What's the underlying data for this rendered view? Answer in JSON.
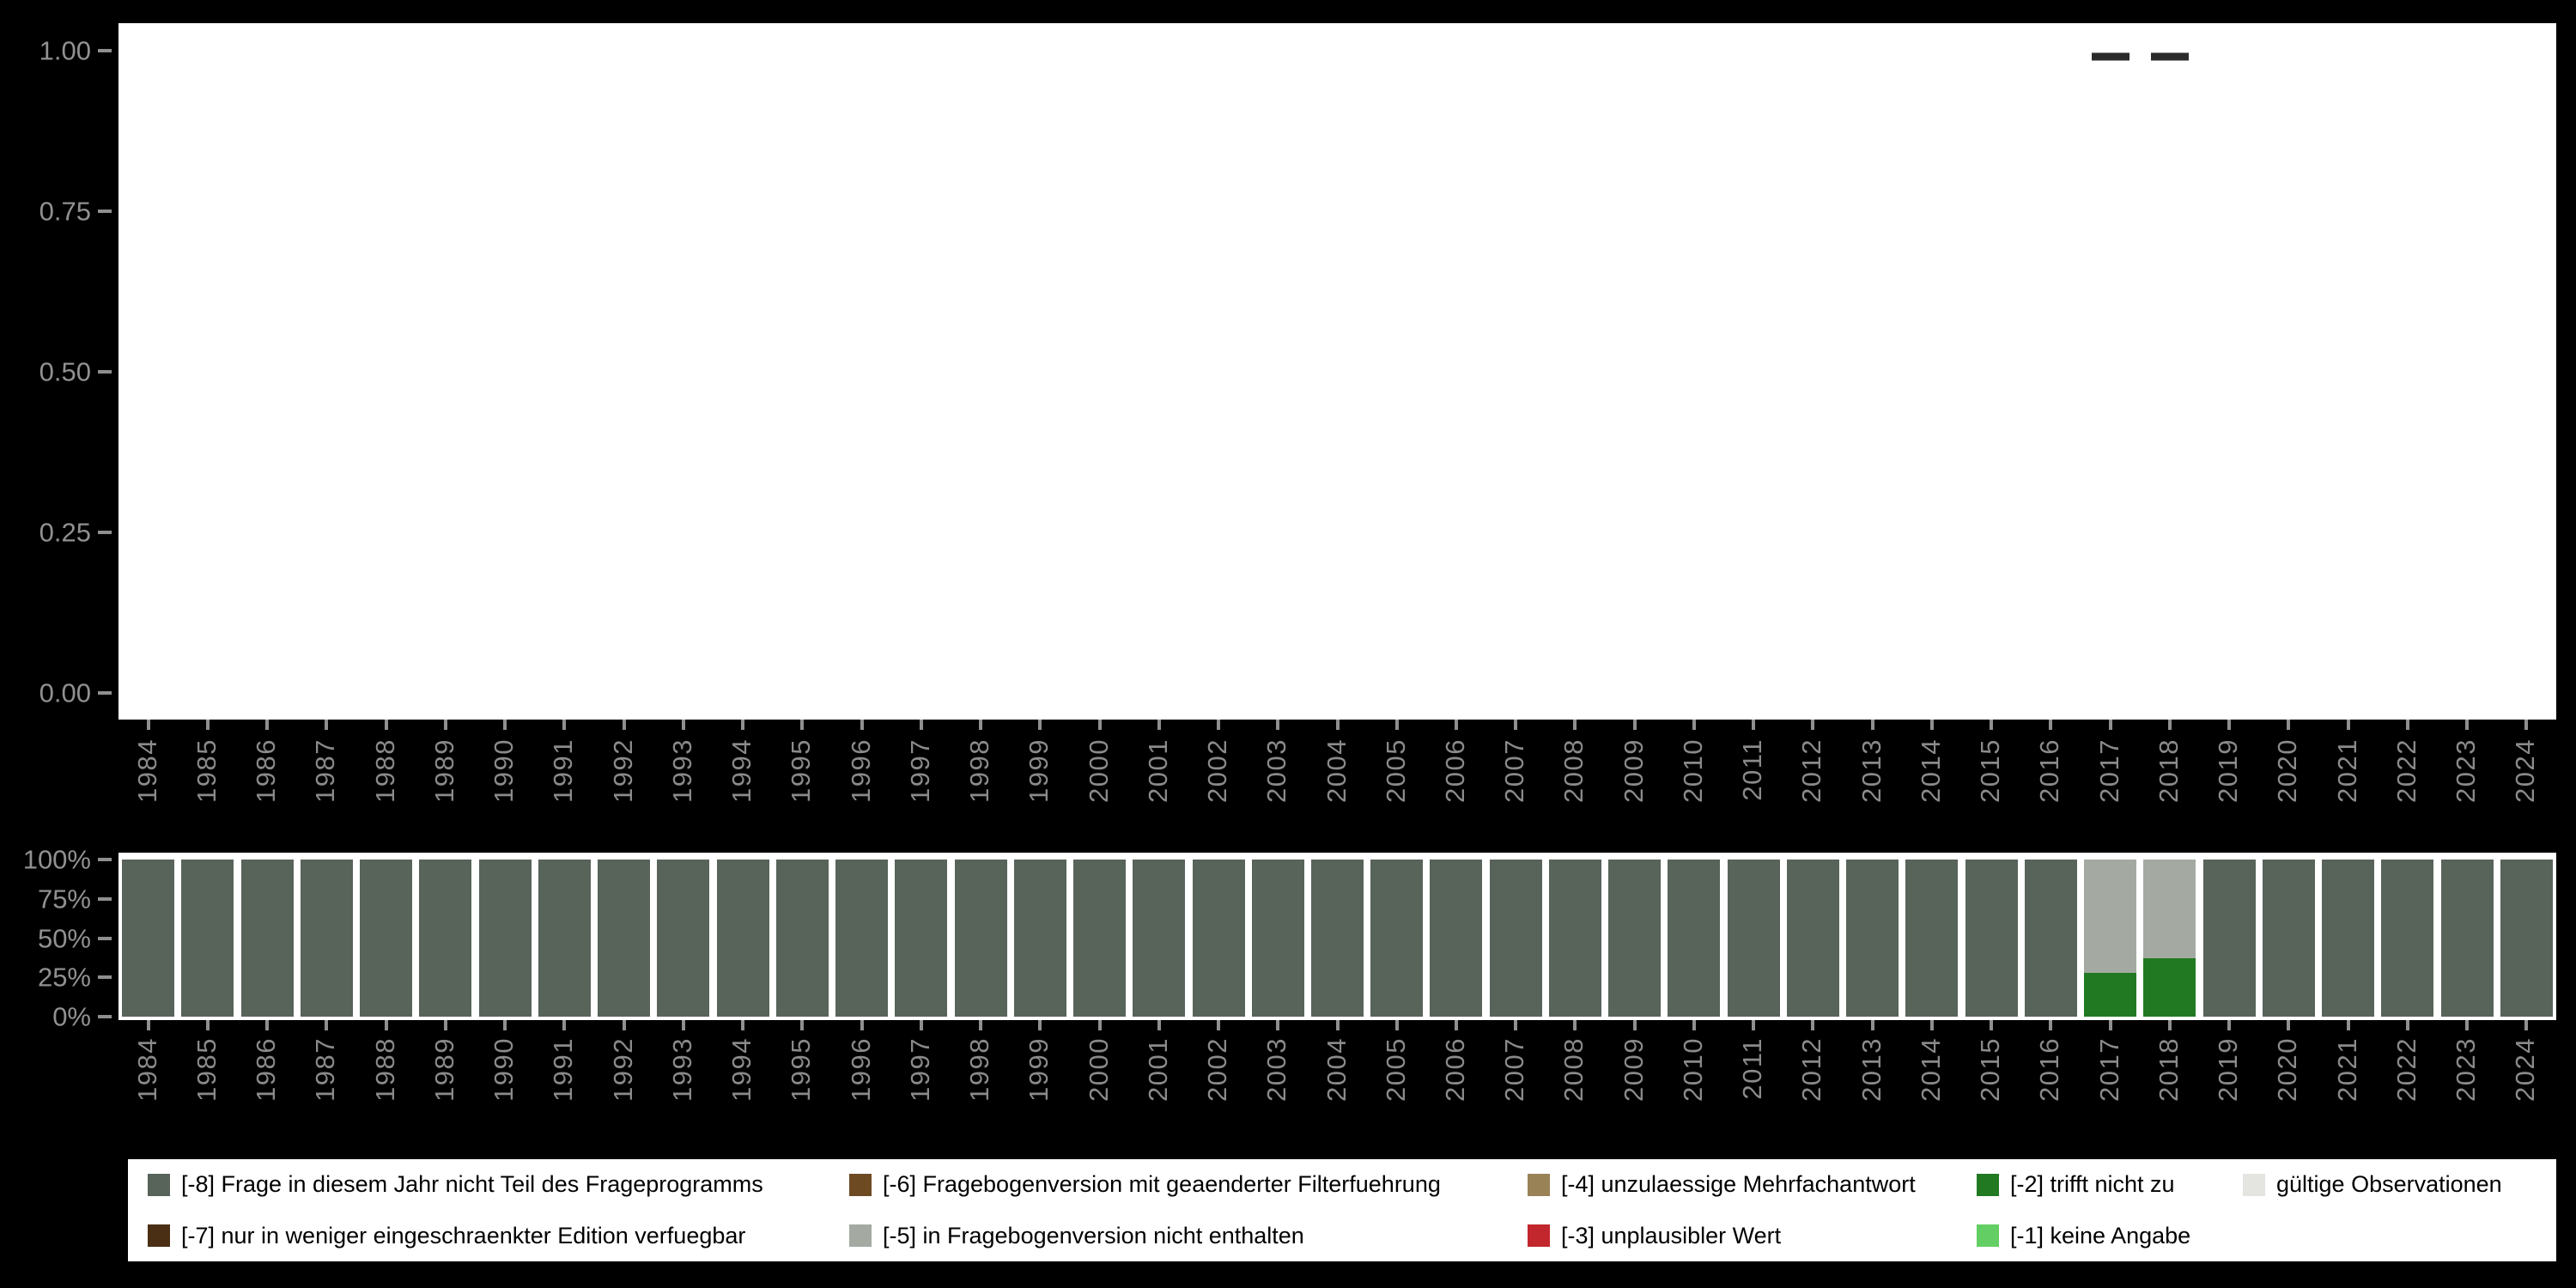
{
  "figure": {
    "background": "#000000",
    "panel_background": "#ffffff",
    "axis_text_color": "#8a8a8a"
  },
  "legend": {
    "items": [
      {
        "label": "[-8] Frage in diesem Jahr nicht Teil des Frageprogramms",
        "color": "#58635a"
      },
      {
        "label": "[-6] Fragebogenversion mit geaenderter Filterfuehrung",
        "color": "#6e4a23"
      },
      {
        "label": "[-4] unzulaessige Mehrfachantwort",
        "color": "#9a8257"
      },
      {
        "label": "[-2] trifft nicht zu",
        "color": "#217a21"
      },
      {
        "label": "gültige Observationen",
        "color": "#e4e5e1"
      },
      {
        "label": "[-7] nur in weniger eingeschraenkter Edition verfuegbar",
        "color": "#4a2f15"
      },
      {
        "label": "[-5] in Fragebogenversion nicht enthalten",
        "color": "#a4aaa2"
      },
      {
        "label": "[-3] unplausibler Wert",
        "color": "#c1272d"
      },
      {
        "label": "[-1] keine Angabe",
        "color": "#63ce63"
      }
    ]
  },
  "chart_data": [
    {
      "type": "scatter",
      "name": "statistic-plot",
      "title": "",
      "xlabel": "",
      "ylabel": "",
      "grid": false,
      "ylim": [
        0,
        1
      ],
      "y_tick_labels": [
        "1.00",
        "0.75",
        "0.50",
        "0.25",
        "0.00"
      ],
      "marker": "horizontal-dash",
      "marker_color": "#2b2b2b",
      "categories": [
        "1984",
        "1985",
        "1986",
        "1987",
        "1988",
        "1989",
        "1990",
        "1991",
        "1992",
        "1993",
        "1994",
        "1995",
        "1996",
        "1997",
        "1998",
        "1999",
        "2000",
        "2001",
        "2002",
        "2003",
        "2004",
        "2005",
        "2006",
        "2007",
        "2008",
        "2009",
        "2010",
        "2011",
        "2012",
        "2013",
        "2014",
        "2015",
        "2016",
        "2017",
        "2018",
        "2019",
        "2020",
        "2021",
        "2022",
        "2023",
        "2024"
      ],
      "points": [
        {
          "x": "2017",
          "y": 0.99
        },
        {
          "x": "2018",
          "y": 0.99
        }
      ]
    },
    {
      "type": "bar",
      "name": "missings-distribution",
      "stacked": true,
      "title": "",
      "xlabel": "",
      "ylabel": "",
      "ylim": [
        0,
        100
      ],
      "unit": "percent",
      "y_tick_labels": [
        "100%",
        "75%",
        "50%",
        "25%",
        "0%"
      ],
      "categories": [
        "1984",
        "1985",
        "1986",
        "1987",
        "1988",
        "1989",
        "1990",
        "1991",
        "1992",
        "1993",
        "1994",
        "1995",
        "1996",
        "1997",
        "1998",
        "1999",
        "2000",
        "2001",
        "2002",
        "2003",
        "2004",
        "2005",
        "2006",
        "2007",
        "2008",
        "2009",
        "2010",
        "2011",
        "2012",
        "2013",
        "2014",
        "2015",
        "2016",
        "2017",
        "2018",
        "2019",
        "2020",
        "2021",
        "2022",
        "2023",
        "2024"
      ],
      "series": [
        {
          "code": "-2",
          "name": "[-2] trifft nicht zu",
          "color": "#217a21",
          "values": [
            0,
            0,
            0,
            0,
            0,
            0,
            0,
            0,
            0,
            0,
            0,
            0,
            0,
            0,
            0,
            0,
            0,
            0,
            0,
            0,
            0,
            0,
            0,
            0,
            0,
            0,
            0,
            0,
            0,
            0,
            0,
            0,
            0,
            28,
            37,
            0,
            0,
            0,
            0,
            0,
            0
          ]
        },
        {
          "code": "-5",
          "name": "[-5] in Fragebogenversion nicht enthalten",
          "color": "#a4aaa2",
          "values": [
            0,
            0,
            0,
            0,
            0,
            0,
            0,
            0,
            0,
            0,
            0,
            0,
            0,
            0,
            0,
            0,
            0,
            0,
            0,
            0,
            0,
            0,
            0,
            0,
            0,
            0,
            0,
            0,
            0,
            0,
            0,
            0,
            0,
            72,
            63,
            0,
            0,
            0,
            0,
            0,
            0
          ]
        },
        {
          "code": "-8",
          "name": "[-8] Frage in diesem Jahr nicht Teil des Frageprogramms",
          "color": "#58635a",
          "values": [
            100,
            100,
            100,
            100,
            100,
            100,
            100,
            100,
            100,
            100,
            100,
            100,
            100,
            100,
            100,
            100,
            100,
            100,
            100,
            100,
            100,
            100,
            100,
            100,
            100,
            100,
            100,
            100,
            100,
            100,
            100,
            100,
            100,
            0,
            0,
            100,
            100,
            100,
            100,
            100,
            100
          ]
        }
      ]
    }
  ]
}
